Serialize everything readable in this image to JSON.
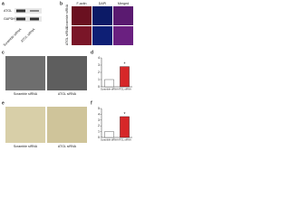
{
  "panels": {
    "a": {
      "label": "a",
      "blot_rows": [
        "ATGL",
        "GAPDH"
      ],
      "lanes": [
        "Scramble siRNA",
        "ATGL siRNA"
      ]
    },
    "b": {
      "label": "b",
      "columns": [
        "F-actin",
        "DAPI",
        "Merged"
      ],
      "rows": [
        "Scramble siRNA",
        "ATGL siRNA"
      ]
    },
    "c": {
      "label": "c",
      "images": [
        "Scramble siRNA",
        "ATGL siRNA"
      ]
    },
    "e": {
      "label": "e",
      "images": [
        "Scramble siRNA",
        "ATGL siRNA"
      ]
    }
  },
  "chart_data": [
    {
      "type": "bar",
      "label": "d",
      "categories": [
        "Scramble siRNA",
        "ATGL siRNA"
      ],
      "values": [
        1,
        2.8
      ],
      "colors": [
        "#ffffff",
        "#d62728"
      ],
      "ylim": [
        0,
        4
      ],
      "yticks": [
        0,
        1,
        2,
        3,
        4
      ],
      "annotation": "*"
    },
    {
      "type": "bar",
      "label": "f",
      "categories": [
        "Scramble siRNA",
        "ATGL siRNA"
      ],
      "values": [
        1,
        3.6
      ],
      "colors": [
        "#ffffff",
        "#d62728"
      ],
      "ylim": [
        0,
        5
      ],
      "yticks": [
        0,
        1,
        2,
        3,
        4,
        5
      ],
      "annotation": "*"
    }
  ]
}
